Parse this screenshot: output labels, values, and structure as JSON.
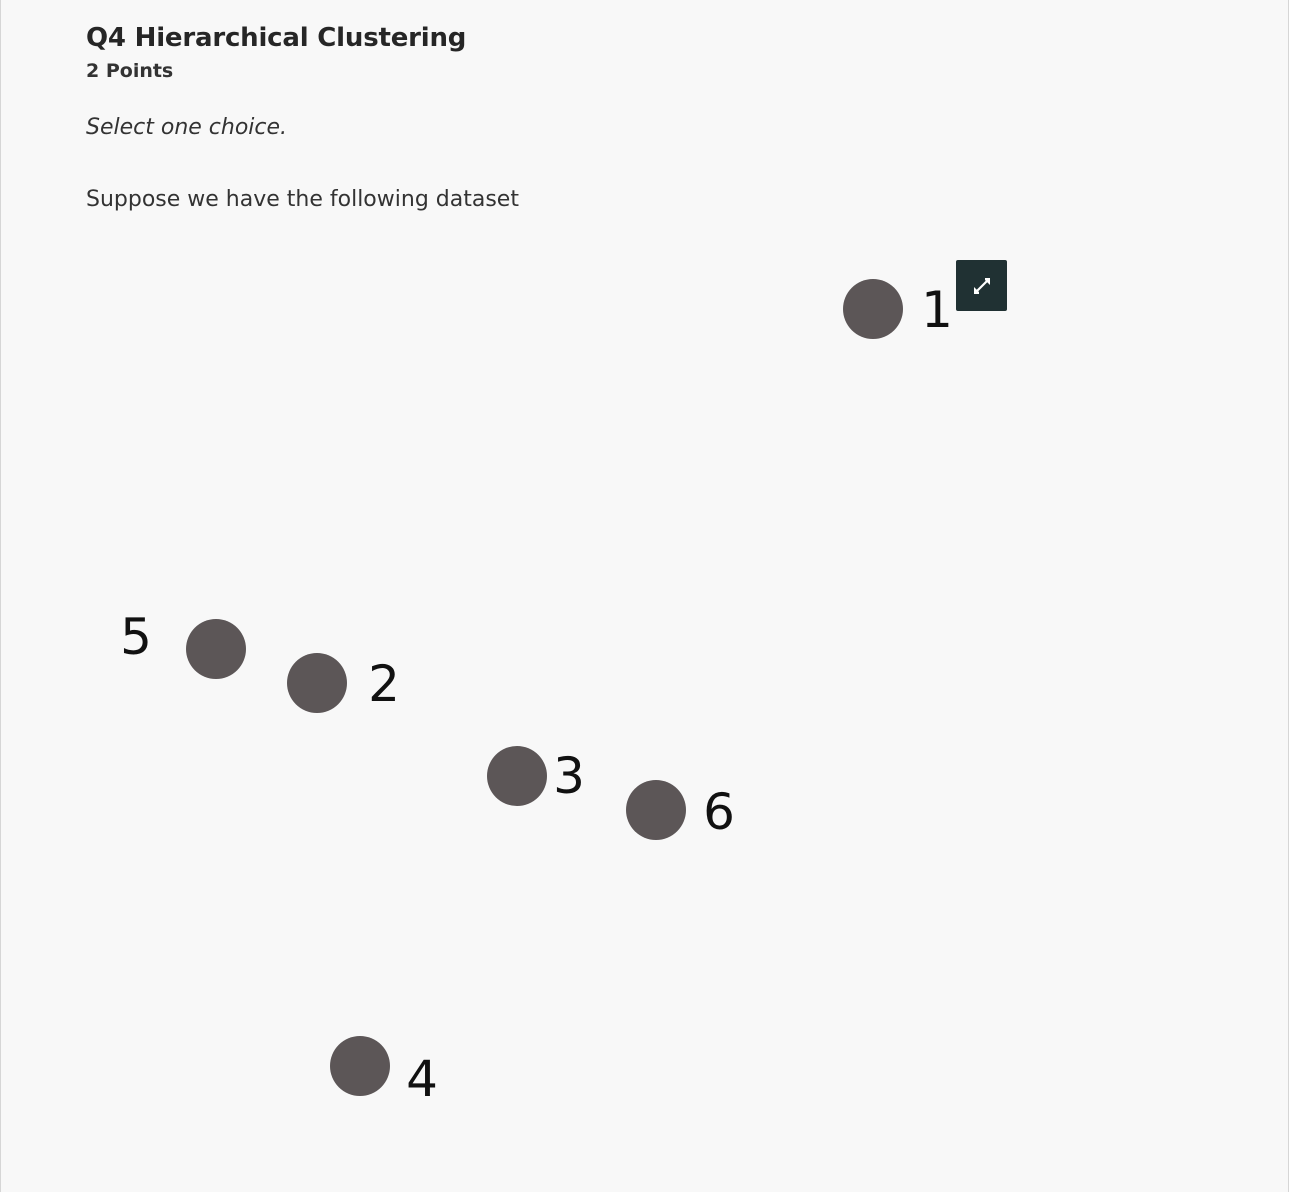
{
  "question": {
    "title": "Q4 Hierarchical Clustering",
    "points": "2 Points",
    "instruction": "Select one choice.",
    "prompt": "Suppose we have the following dataset"
  },
  "figure": {
    "point_color": "#5c5657",
    "label_color": "#111111",
    "points": [
      {
        "label": "1"
      },
      {
        "label": "2"
      },
      {
        "label": "3"
      },
      {
        "label": "4"
      },
      {
        "label": "5"
      },
      {
        "label": "6"
      }
    ]
  },
  "expand_icon": "expand-arrows-icon",
  "colors": {
    "panel_bg": "#f8f8f8",
    "expand_button_bg": "#203133"
  }
}
